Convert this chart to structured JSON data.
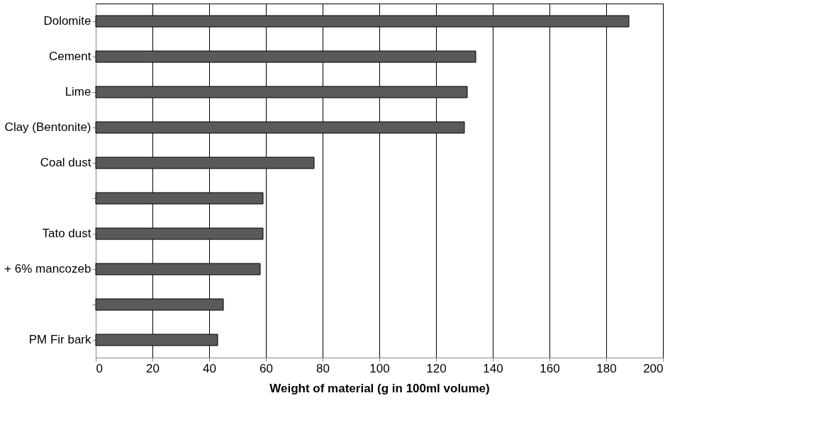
{
  "chart_data": {
    "type": "bar",
    "orientation": "horizontal",
    "xlabel": "Weight of material (g in 100ml volume)",
    "categories": [
      "Dolomite",
      "Cement",
      "Lime",
      "Clay (Bentonite)",
      "Coal dust",
      null,
      "Tato dust",
      "+ 6% mancozeb",
      null,
      "PM Fir bark"
    ],
    "values": [
      188,
      134,
      131,
      130,
      77,
      59,
      59,
      58,
      45,
      43
    ],
    "color": "#5a5a5a",
    "xlim": [
      0,
      200
    ],
    "xticks": [
      0,
      20,
      40,
      60,
      80,
      100,
      120,
      140,
      160,
      180,
      200
    ],
    "grid": "x"
  }
}
